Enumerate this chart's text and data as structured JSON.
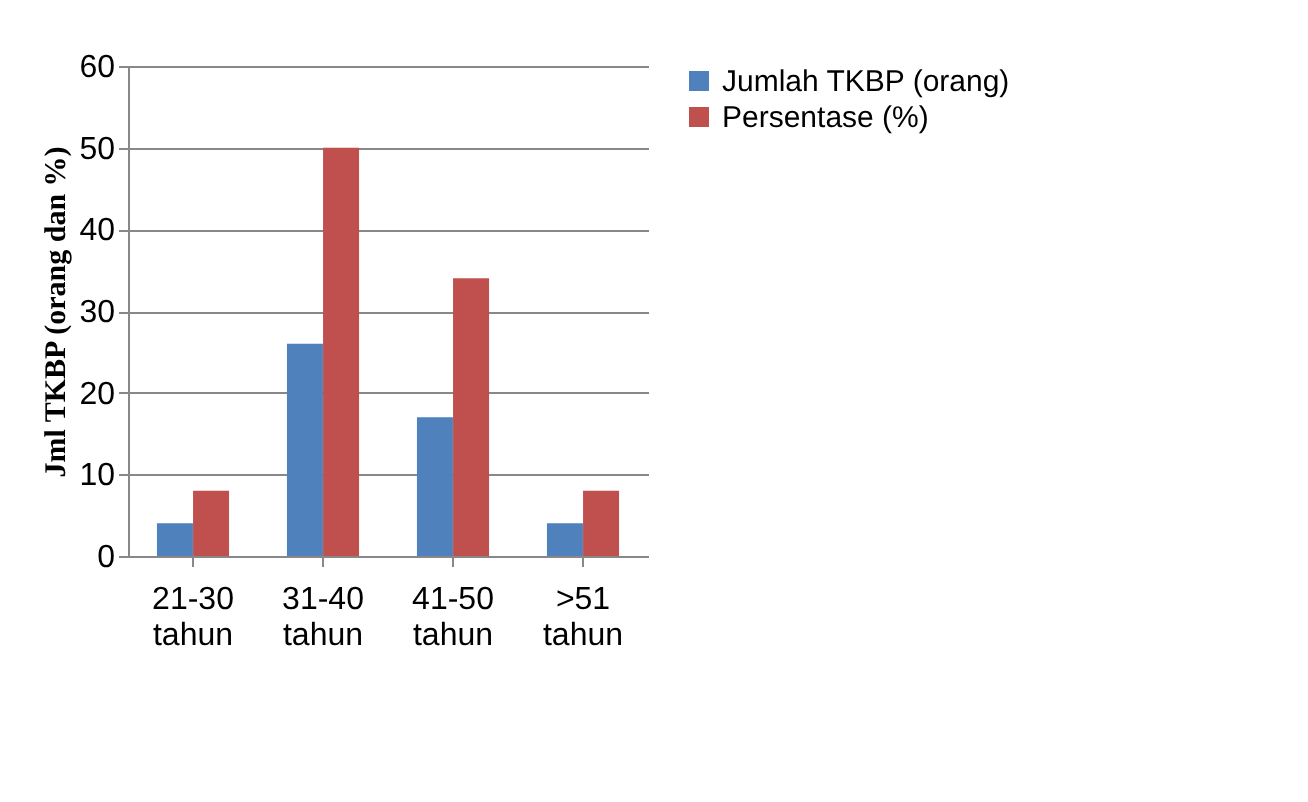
{
  "chart_data": {
    "type": "bar",
    "categories": [
      "21-30 tahun",
      "31-40 tahun",
      "41-50 tahun",
      ">51 tahun"
    ],
    "series": [
      {
        "name": "Jumlah TKBP (orang)",
        "color": "#4f81bd",
        "values": [
          4,
          26,
          17,
          4
        ]
      },
      {
        "name": "Persentase  (%)",
        "color": "#c0504d",
        "values": [
          8,
          50,
          34,
          8
        ]
      }
    ],
    "ylabel": "Jml  TKBP (orang dan %)",
    "ylim": [
      0,
      60
    ],
    "yticks": [
      0,
      10,
      20,
      30,
      40,
      50,
      60
    ],
    "grid": "y",
    "legend": "right"
  }
}
